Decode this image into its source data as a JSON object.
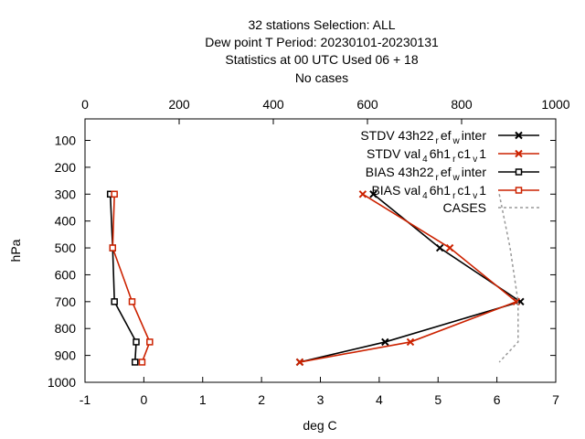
{
  "chart_data": {
    "type": "line",
    "title_lines": [
      "32 stations Selection: ALL",
      "Dew point T  Period: 20230101-20230131",
      "Statistics at 00 UTC  Used  06  + 18",
      "No cases"
    ],
    "xlabel": "deg C",
    "ylabel": "hPa",
    "xlim": [
      -1,
      7
    ],
    "ylim": [
      1000,
      20
    ],
    "y_inverted": true,
    "x_ticks": [
      -1,
      0,
      1,
      2,
      3,
      4,
      5,
      6,
      7
    ],
    "y_ticks": [
      100,
      200,
      300,
      400,
      500,
      600,
      700,
      800,
      900,
      1000
    ],
    "x2_label": "",
    "x2lim": [
      0,
      1000
    ],
    "x2_ticks": [
      0,
      200,
      400,
      600,
      800,
      1000
    ],
    "grid": false,
    "legend_position": "top-right",
    "series": [
      {
        "name": "STDV 43h22_ref_winter",
        "legend_main": "STDV 43h22",
        "legend_parts": [
          [
            "r",
            ""
          ],
          [
            "ef",
            ""
          ],
          [
            "w",
            ""
          ],
          [
            "inter",
            ""
          ]
        ],
        "legend_text": "STDV 43h22 r ef w inter",
        "color": "#000000",
        "marker": "x",
        "x": [
          3.9,
          5.03,
          6.4,
          4.1,
          2.65
        ],
        "y": [
          300,
          500,
          700,
          850,
          925
        ]
      },
      {
        "name": "STDV val_46h1_rc1_v1",
        "legend_text": "STDV val 4 6h1 r c1 v 1",
        "color": "#cc2200",
        "marker": "x",
        "x": [
          3.72,
          5.2,
          6.33,
          4.53,
          2.65
        ],
        "y": [
          300,
          500,
          700,
          850,
          925
        ]
      },
      {
        "name": "BIAS 43h22_ref_winter",
        "legend_text": "BIAS 43h22 r ef w inter",
        "color": "#000000",
        "marker": "square",
        "x": [
          -0.57,
          -0.53,
          -0.5,
          -0.13,
          -0.15
        ],
        "y": [
          300,
          500,
          700,
          850,
          925
        ]
      },
      {
        "name": "BIAS val_46h1_rc1_v1",
        "legend_text": "BIAS val 4 6h1 r c1 v 1",
        "color": "#cc2200",
        "marker": "square",
        "x": [
          -0.5,
          -0.53,
          -0.2,
          0.1,
          -0.03
        ],
        "y": [
          300,
          500,
          700,
          850,
          925
        ]
      },
      {
        "name": "CASES",
        "legend_text": "CASES",
        "color": "#999999",
        "marker": "none",
        "dashed": true,
        "axis": "x2",
        "x": [
          880,
          903,
          920,
          920,
          880
        ],
        "y": [
          300,
          500,
          700,
          850,
          925
        ]
      }
    ]
  },
  "legend_entries": [
    {
      "main": "STDV 43h22",
      "subs": [
        "r",
        "ef",
        "w",
        "inter"
      ]
    },
    {
      "main": "STDV val",
      "subs": [
        "4",
        "6h1",
        "r",
        "c1",
        "v",
        "1"
      ]
    },
    {
      "main": "BIAS 43h22",
      "subs": [
        "r",
        "ef",
        "w",
        "inter"
      ]
    },
    {
      "main": "BIAS val",
      "subs": [
        "4",
        "6h1",
        "r",
        "c1",
        "v",
        "1"
      ]
    },
    {
      "main": "CASES",
      "subs": []
    }
  ]
}
